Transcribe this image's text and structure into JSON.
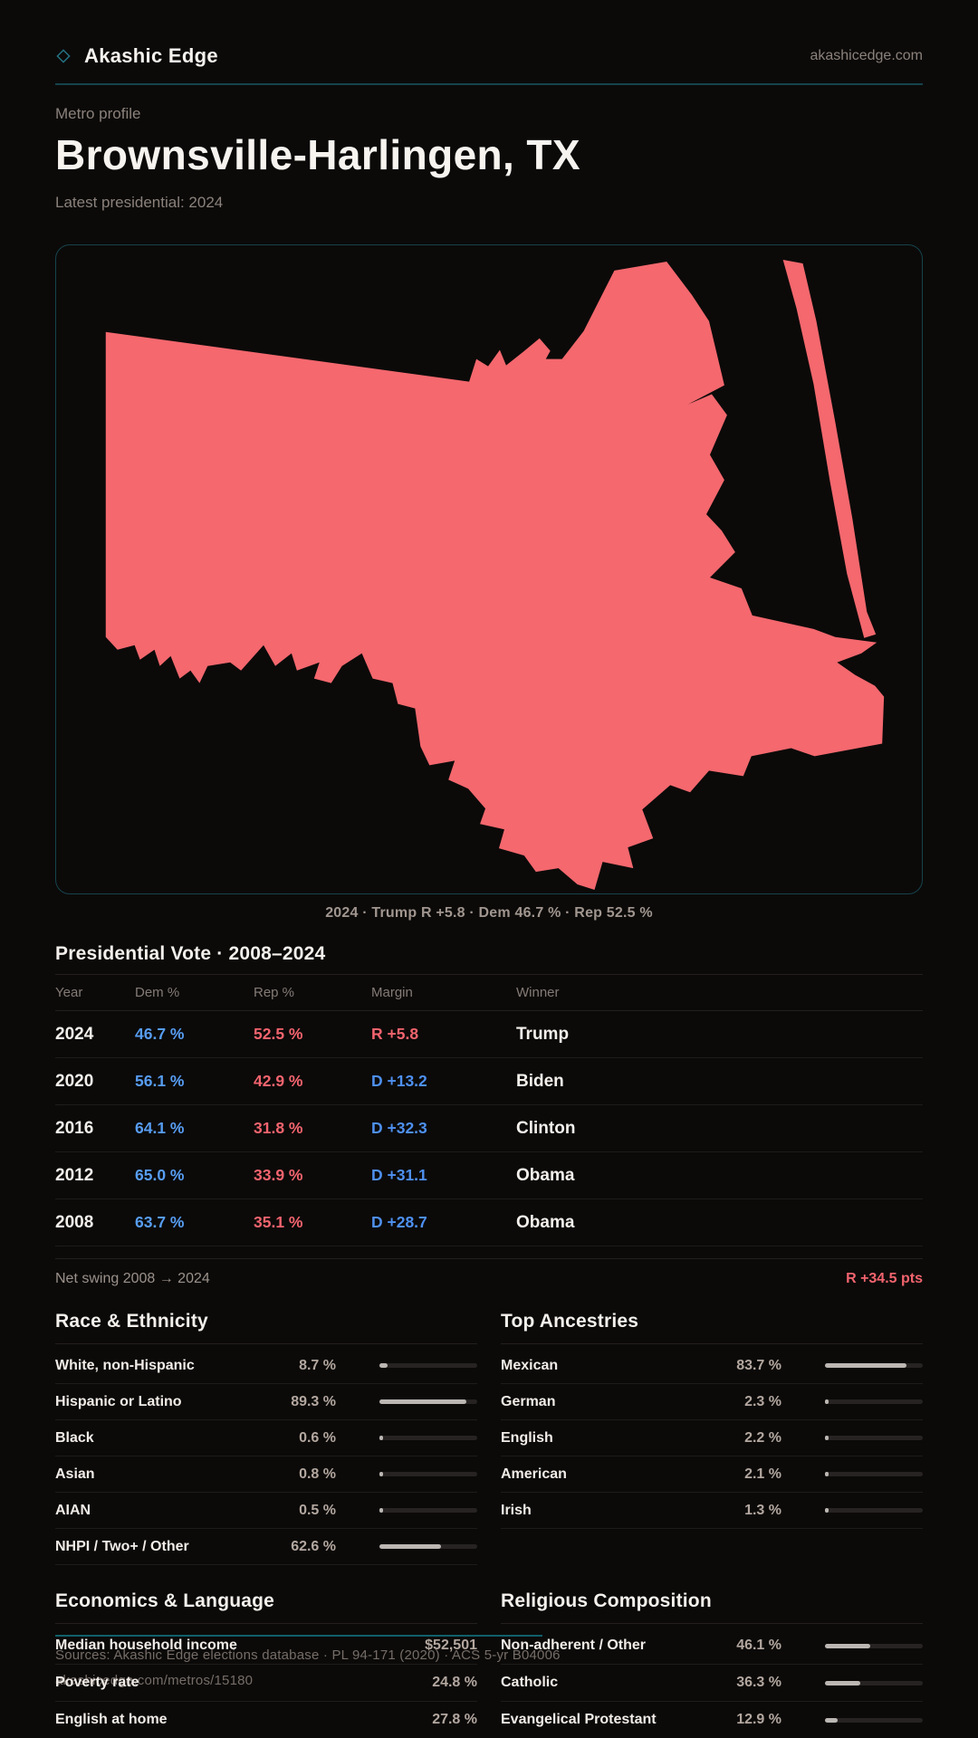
{
  "brand": {
    "name": "Akashic Edge",
    "domain": "akashicedge.com"
  },
  "profile": {
    "eyebrow": "Metro profile",
    "title": "Brownsville-Harlingen, TX",
    "subtitle": "Latest presidential: 2024"
  },
  "map": {
    "caption": "2024 · Trump R +5.8 · Dem 46.7 % · Rep 52.5 %",
    "fill_color": "#f4686e"
  },
  "pres": {
    "title": "Presidential Vote · 2008–2024",
    "columns": {
      "year": "Year",
      "dem": "Dem %",
      "rep": "Rep %",
      "margin": "Margin",
      "winner": "Winner"
    },
    "rows": [
      {
        "year": "2024",
        "dem": "46.7 %",
        "rep": "52.5 %",
        "margin": "R +5.8",
        "party": "R",
        "winner": "Trump"
      },
      {
        "year": "2020",
        "dem": "56.1 %",
        "rep": "42.9 %",
        "margin": "D +13.2",
        "party": "D",
        "winner": "Biden"
      },
      {
        "year": "2016",
        "dem": "64.1 %",
        "rep": "31.8 %",
        "margin": "D +32.3",
        "party": "D",
        "winner": "Clinton"
      },
      {
        "year": "2012",
        "dem": "65.0 %",
        "rep": "33.9 %",
        "margin": "D +31.1",
        "party": "D",
        "winner": "Obama"
      },
      {
        "year": "2008",
        "dem": "63.7 %",
        "rep": "35.1 %",
        "margin": "D +28.7",
        "party": "D",
        "winner": "Obama"
      }
    ],
    "swing_label": "Net swing 2008 → 2024",
    "swing_value": "R +34.5 pts"
  },
  "race": {
    "title": "Race & Ethnicity",
    "rows": [
      {
        "label": "White, non-Hispanic",
        "value": "8.7 %",
        "pct": 8.7
      },
      {
        "label": "Hispanic or Latino",
        "value": "89.3 %",
        "pct": 89.3
      },
      {
        "label": "Black",
        "value": "0.6 %",
        "pct": 0.6
      },
      {
        "label": "Asian",
        "value": "0.8 %",
        "pct": 0.8
      },
      {
        "label": "AIAN",
        "value": "0.5 %",
        "pct": 0.5
      },
      {
        "label": "NHPI / Two+ / Other",
        "value": "62.6 %",
        "pct": 62.6
      }
    ]
  },
  "ancestries": {
    "title": "Top Ancestries",
    "rows": [
      {
        "label": "Mexican",
        "value": "83.7 %",
        "pct": 83.7
      },
      {
        "label": "German",
        "value": "2.3 %",
        "pct": 2.3
      },
      {
        "label": "English",
        "value": "2.2 %",
        "pct": 2.2
      },
      {
        "label": "American",
        "value": "2.1 %",
        "pct": 2.1
      },
      {
        "label": "Irish",
        "value": "1.3 %",
        "pct": 1.3
      }
    ]
  },
  "economics": {
    "title": "Economics & Language",
    "rows": [
      {
        "label": "Median household income",
        "value": "$52,501"
      },
      {
        "label": "Poverty rate",
        "value": "24.8 %"
      },
      {
        "label": "English at home",
        "value": "27.8 %"
      }
    ]
  },
  "religion": {
    "title": "Religious Composition",
    "rows": [
      {
        "label": "Non-adherent / Other",
        "value": "46.1 %",
        "pct": 46.1
      },
      {
        "label": "Catholic",
        "value": "36.3 %",
        "pct": 36.3
      },
      {
        "label": "Evangelical Protestant",
        "value": "12.9 %",
        "pct": 12.9
      }
    ]
  },
  "footer": {
    "line1": "Sources: Akashic Edge elections database · PL 94-171 (2020) · ACS 5-yr B04006",
    "line2": "akashicedge.com/metros/15180"
  },
  "colors": {
    "dem_blue": "#579df2",
    "rep_red": "#f3646e",
    "accent_teal": "#0f5f69",
    "map_fill": "#f4686e"
  }
}
